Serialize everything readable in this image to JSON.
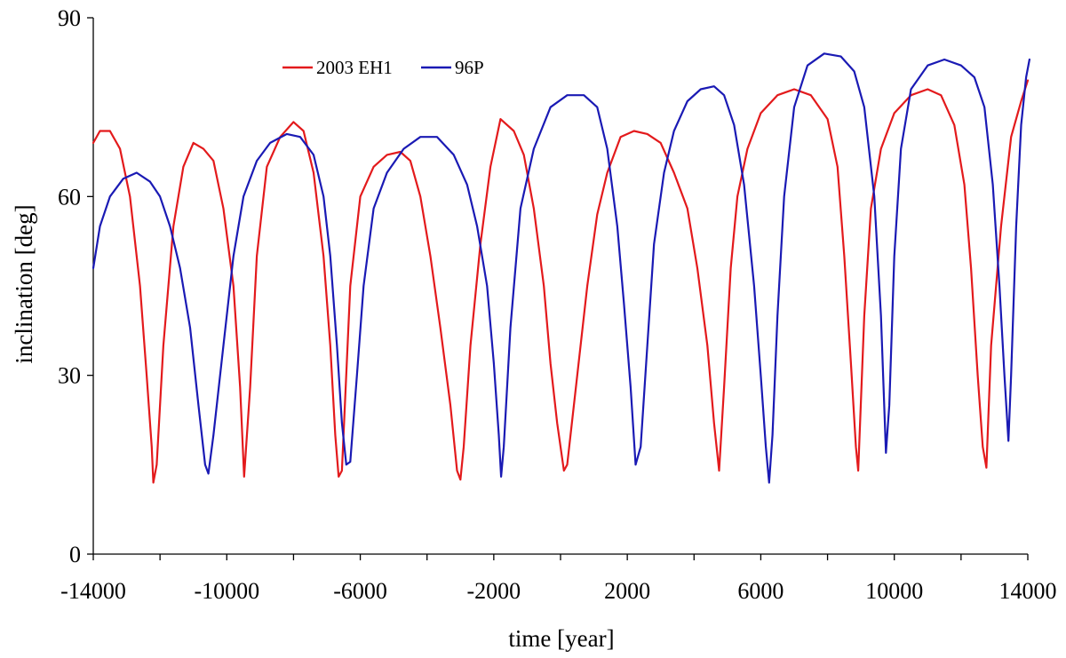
{
  "chart_data": {
    "type": "line",
    "title": "",
    "xlabel": "time [year]",
    "ylabel": "inclination [deg]",
    "xlim": [
      -14000,
      14000
    ],
    "ylim": [
      0,
      90
    ],
    "x_ticks": [
      -14000,
      -10000,
      -6000,
      -2000,
      2000,
      6000,
      10000,
      14000
    ],
    "x_tick_labels": [
      "-14000",
      "-10000",
      "-6000",
      "-2000",
      "2000",
      "6000",
      "10000",
      "14000"
    ],
    "x_minor_step": 2000,
    "y_ticks": [
      0,
      30,
      60,
      90
    ],
    "y_tick_labels": [
      "0",
      "30",
      "60",
      "90"
    ],
    "grid": false,
    "legend_position": "top-left inside",
    "series": [
      {
        "name": "2003 EH1",
        "color": "#e31a1c",
        "points": [
          [
            -14000,
            69
          ],
          [
            -13800,
            71
          ],
          [
            -13500,
            71
          ],
          [
            -13200,
            68
          ],
          [
            -12900,
            60
          ],
          [
            -12600,
            45
          ],
          [
            -12400,
            30
          ],
          [
            -12250,
            18
          ],
          [
            -12200,
            12
          ],
          [
            -12100,
            15
          ],
          [
            -11900,
            35
          ],
          [
            -11600,
            55
          ],
          [
            -11300,
            65
          ],
          [
            -11000,
            69
          ],
          [
            -10700,
            68
          ],
          [
            -10400,
            66
          ],
          [
            -10100,
            58
          ],
          [
            -9800,
            45
          ],
          [
            -9600,
            28
          ],
          [
            -9480,
            13
          ],
          [
            -9300,
            28
          ],
          [
            -9100,
            50
          ],
          [
            -8800,
            65
          ],
          [
            -8400,
            70
          ],
          [
            -8000,
            72.5
          ],
          [
            -7700,
            71
          ],
          [
            -7400,
            64
          ],
          [
            -7100,
            50
          ],
          [
            -6900,
            35
          ],
          [
            -6750,
            20
          ],
          [
            -6650,
            13
          ],
          [
            -6550,
            14
          ],
          [
            -6300,
            45
          ],
          [
            -6000,
            60
          ],
          [
            -5600,
            65
          ],
          [
            -5200,
            67
          ],
          [
            -4800,
            67.5
          ],
          [
            -4500,
            66
          ],
          [
            -4200,
            60
          ],
          [
            -3900,
            50
          ],
          [
            -3600,
            38
          ],
          [
            -3300,
            25
          ],
          [
            -3100,
            14
          ],
          [
            -3000,
            12.5
          ],
          [
            -2900,
            18
          ],
          [
            -2700,
            35
          ],
          [
            -2400,
            52
          ],
          [
            -2100,
            65
          ],
          [
            -1800,
            73
          ],
          [
            -1400,
            71
          ],
          [
            -1100,
            67
          ],
          [
            -800,
            58
          ],
          [
            -500,
            45
          ],
          [
            -300,
            32
          ],
          [
            -100,
            22
          ],
          [
            100,
            14
          ],
          [
            200,
            15
          ],
          [
            500,
            30
          ],
          [
            800,
            45
          ],
          [
            1100,
            57
          ],
          [
            1400,
            64
          ],
          [
            1800,
            70
          ],
          [
            2200,
            71
          ],
          [
            2600,
            70.5
          ],
          [
            3000,
            69
          ],
          [
            3400,
            64
          ],
          [
            3800,
            58
          ],
          [
            4100,
            48
          ],
          [
            4400,
            35
          ],
          [
            4600,
            22
          ],
          [
            4750,
            14
          ],
          [
            4900,
            28
          ],
          [
            5100,
            48
          ],
          [
            5300,
            60
          ],
          [
            5600,
            68
          ],
          [
            6000,
            74
          ],
          [
            6500,
            77
          ],
          [
            7000,
            78
          ],
          [
            7500,
            77
          ],
          [
            8000,
            73
          ],
          [
            8300,
            65
          ],
          [
            8500,
            50
          ],
          [
            8700,
            32
          ],
          [
            8850,
            18
          ],
          [
            8920,
            14
          ],
          [
            9100,
            40
          ],
          [
            9300,
            58
          ],
          [
            9600,
            68
          ],
          [
            10000,
            74
          ],
          [
            10500,
            77
          ],
          [
            11000,
            78
          ],
          [
            11400,
            77
          ],
          [
            11800,
            72
          ],
          [
            12100,
            62
          ],
          [
            12300,
            48
          ],
          [
            12500,
            30
          ],
          [
            12650,
            18
          ],
          [
            12760,
            14.5
          ],
          [
            12900,
            35
          ],
          [
            13200,
            55
          ],
          [
            13500,
            70
          ],
          [
            13800,
            76
          ],
          [
            14000,
            79.5
          ]
        ]
      },
      {
        "name": "96P",
        "color": "#1a1ab4",
        "points": [
          [
            -14000,
            48
          ],
          [
            -13800,
            55
          ],
          [
            -13500,
            60
          ],
          [
            -13100,
            63
          ],
          [
            -12700,
            64
          ],
          [
            -12300,
            62.5
          ],
          [
            -12000,
            60
          ],
          [
            -11700,
            55
          ],
          [
            -11400,
            48
          ],
          [
            -11100,
            38
          ],
          [
            -10850,
            25
          ],
          [
            -10650,
            15
          ],
          [
            -10550,
            13.5
          ],
          [
            -10400,
            20
          ],
          [
            -10100,
            35
          ],
          [
            -9800,
            50
          ],
          [
            -9500,
            60
          ],
          [
            -9100,
            66
          ],
          [
            -8700,
            69
          ],
          [
            -8200,
            70.5
          ],
          [
            -7800,
            70
          ],
          [
            -7400,
            67
          ],
          [
            -7100,
            60
          ],
          [
            -6900,
            50
          ],
          [
            -6700,
            35
          ],
          [
            -6550,
            22
          ],
          [
            -6420,
            15
          ],
          [
            -6300,
            15.5
          ],
          [
            -6100,
            30
          ],
          [
            -5900,
            45
          ],
          [
            -5600,
            58
          ],
          [
            -5200,
            64
          ],
          [
            -4700,
            68
          ],
          [
            -4200,
            70
          ],
          [
            -3700,
            70
          ],
          [
            -3200,
            67
          ],
          [
            -2800,
            62
          ],
          [
            -2500,
            55
          ],
          [
            -2200,
            45
          ],
          [
            -2000,
            32
          ],
          [
            -1850,
            20
          ],
          [
            -1780,
            13
          ],
          [
            -1700,
            18
          ],
          [
            -1500,
            38
          ],
          [
            -1200,
            58
          ],
          [
            -800,
            68
          ],
          [
            -300,
            75
          ],
          [
            200,
            77
          ],
          [
            700,
            77
          ],
          [
            1100,
            75
          ],
          [
            1400,
            68
          ],
          [
            1700,
            55
          ],
          [
            1900,
            42
          ],
          [
            2100,
            28
          ],
          [
            2250,
            15
          ],
          [
            2400,
            18
          ],
          [
            2600,
            35
          ],
          [
            2800,
            52
          ],
          [
            3100,
            64
          ],
          [
            3400,
            71
          ],
          [
            3800,
            76
          ],
          [
            4200,
            78
          ],
          [
            4600,
            78.5
          ],
          [
            4900,
            77
          ],
          [
            5200,
            72
          ],
          [
            5500,
            62
          ],
          [
            5800,
            45
          ],
          [
            6000,
            30
          ],
          [
            6150,
            18
          ],
          [
            6250,
            12
          ],
          [
            6350,
            20
          ],
          [
            6500,
            40
          ],
          [
            6700,
            60
          ],
          [
            7000,
            75
          ],
          [
            7400,
            82
          ],
          [
            7900,
            84
          ],
          [
            8400,
            83.5
          ],
          [
            8800,
            81
          ],
          [
            9100,
            75
          ],
          [
            9400,
            60
          ],
          [
            9600,
            40
          ],
          [
            9750,
            17
          ],
          [
            9850,
            25
          ],
          [
            10000,
            50
          ],
          [
            10200,
            68
          ],
          [
            10500,
            78
          ],
          [
            11000,
            82
          ],
          [
            11500,
            83
          ],
          [
            12000,
            82
          ],
          [
            12400,
            80
          ],
          [
            12700,
            75
          ],
          [
            12950,
            62
          ],
          [
            13150,
            45
          ],
          [
            13300,
            30
          ],
          [
            13420,
            19
          ],
          [
            13500,
            30
          ],
          [
            13650,
            55
          ],
          [
            13800,
            72
          ],
          [
            13950,
            80
          ],
          [
            14050,
            83
          ]
        ]
      }
    ]
  }
}
